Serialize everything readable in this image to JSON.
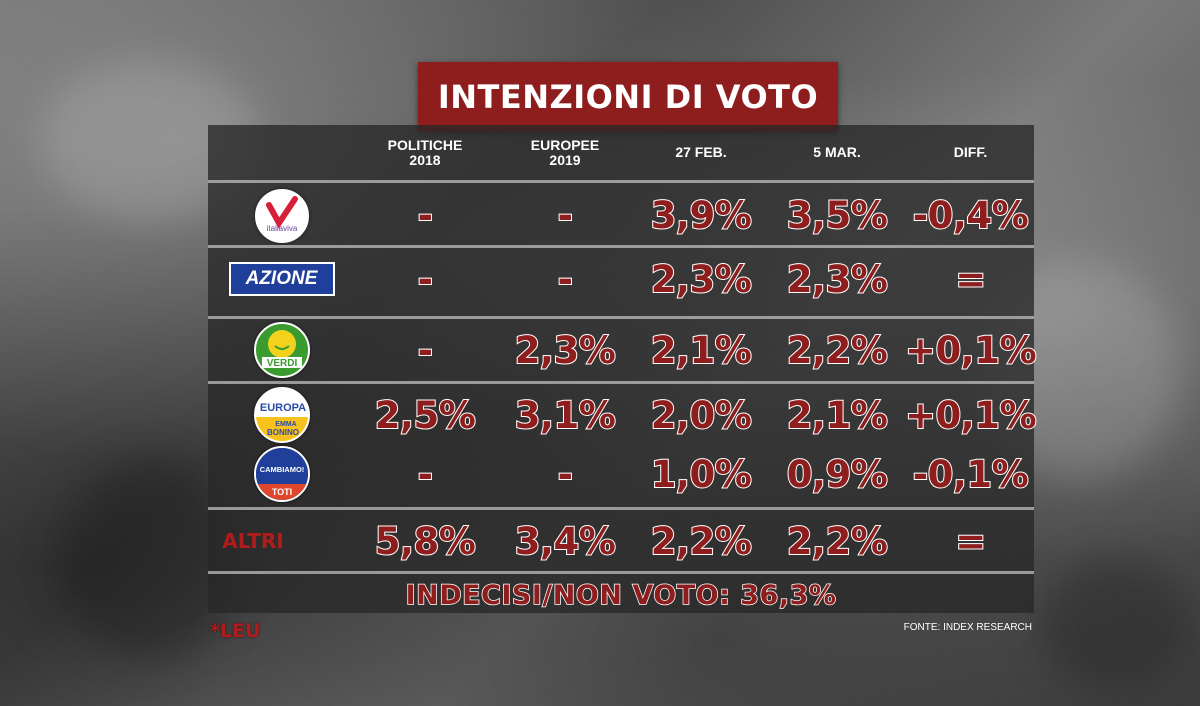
{
  "title": "INTENZIONI DI VOTO",
  "columns": {
    "c1_line1": "POLITICHE",
    "c1_line2": "2018",
    "c2_line1": "EUROPEE",
    "c2_line2": "2019",
    "c3": "27 FEB.",
    "c4": "5 MAR.",
    "c5": "DIFF."
  },
  "rows": [
    {
      "party": "Italia Viva",
      "logo_text": "italiaviva",
      "politiche_2018": "-",
      "europee_2019": "-",
      "feb27": "3,9%",
      "mar5": "3,5%",
      "diff": "-0,4%"
    },
    {
      "party": "Azione",
      "logo_text": "AZIONE",
      "politiche_2018": "-",
      "europee_2019": "-",
      "feb27": "2,3%",
      "mar5": "2,3%",
      "diff": "="
    },
    {
      "party": "Verdi",
      "logo_text": "VERDI",
      "politiche_2018": "-",
      "europee_2019": "2,3%",
      "feb27": "2,1%",
      "mar5": "2,2%",
      "diff": "+0,1%"
    },
    {
      "party": "+Europa",
      "logo_text_1": "EUROPA",
      "logo_text_2": "EMMA",
      "logo_text_3": "BONINO",
      "politiche_2018": "2,5%",
      "europee_2019": "3,1%",
      "feb27": "2,0%",
      "mar5": "2,1%",
      "diff": "+0,1%"
    },
    {
      "party": "Cambiamo!",
      "logo_text_1": "CAMBIAMO!",
      "logo_text_2": "TOTI",
      "politiche_2018": "-",
      "europee_2019": "-",
      "feb27": "1,0%",
      "mar5": "0,9%",
      "diff": "-0,1%"
    },
    {
      "party": "ALTRI",
      "label": "ALTRI",
      "politiche_2018": "5,8%",
      "europee_2019": "3,4%",
      "feb27": "2,2%",
      "mar5": "2,2%",
      "diff": "="
    }
  ],
  "footer": "INDECISI/NON VOTO: 36,3%",
  "note": "*LEU",
  "source": "FONTE: INDEX RESEARCH",
  "colors": {
    "accent": "#8e1e1e",
    "table_bg": "#2b2b2b",
    "divider": "#bebebe"
  }
}
